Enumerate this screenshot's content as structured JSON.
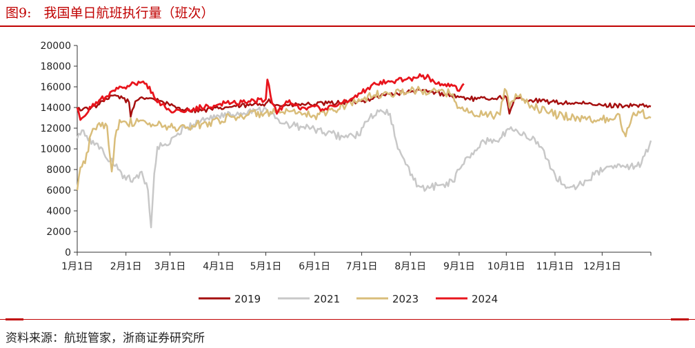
{
  "figure": {
    "label": "图9:",
    "title": "我国单日航班执行量（班次）"
  },
  "source": "资料来源：航班管家，浙商证券研究所",
  "colors": {
    "accent": "#c00000",
    "s2019": "#a50f0f",
    "s2021": "#c8c8c8",
    "s2023": "#d9bd7a",
    "s2024": "#e8141c",
    "axis": "#333333"
  },
  "chart_data": {
    "type": "line",
    "title": "我国单日航班执行量（班次）",
    "xlabel": "",
    "ylabel": "",
    "ylim": [
      0,
      20000
    ],
    "yticks": [
      0,
      2000,
      4000,
      6000,
      8000,
      10000,
      12000,
      14000,
      16000,
      18000,
      20000
    ],
    "xticks": [
      "1月1日",
      "2月1日",
      "3月1日",
      "4月1日",
      "5月1日",
      "6月1日",
      "7月1日",
      "8月1日",
      "9月1日",
      "10月1日",
      "11月1日",
      "12月1日"
    ],
    "xtick_days": [
      1,
      32,
      60,
      91,
      121,
      152,
      182,
      213,
      244,
      274,
      305,
      335
    ],
    "x_range_days": [
      1,
      366
    ],
    "grid": false,
    "legend_position": "bottom",
    "series": [
      {
        "name": "2019",
        "color": "#a50f0f",
        "x": [
          1,
          5,
          10,
          15,
          20,
          25,
          30,
          34,
          35,
          38,
          42,
          48,
          55,
          60,
          65,
          70,
          80,
          91,
          100,
          110,
          121,
          123,
          127,
          135,
          145,
          152,
          160,
          170,
          182,
          190,
          200,
          213,
          220,
          226,
          235,
          244,
          255,
          265,
          274,
          276,
          280,
          290,
          305,
          320,
          335,
          350,
          366
        ],
        "y": [
          13800,
          13900,
          14000,
          14300,
          14800,
          15200,
          14900,
          14500,
          13100,
          14600,
          15000,
          14900,
          14600,
          14200,
          14000,
          13800,
          13700,
          13900,
          14100,
          14200,
          14400,
          14800,
          14200,
          14200,
          14300,
          14300,
          14400,
          14500,
          14600,
          15000,
          15300,
          15500,
          15600,
          15500,
          15300,
          15000,
          14800,
          14900,
          15000,
          13400,
          14900,
          14700,
          14500,
          14400,
          14200,
          14200,
          14100
        ]
      },
      {
        "name": "2021",
        "color": "#c8c8c8",
        "x": [
          1,
          4,
          8,
          14,
          20,
          26,
          32,
          38,
          42,
          46,
          48,
          50,
          52,
          55,
          60,
          65,
          70,
          80,
          91,
          100,
          110,
          121,
          130,
          140,
          152,
          160,
          170,
          180,
          187,
          193,
          200,
          205,
          210,
          215,
          220,
          225,
          232,
          240,
          244,
          250,
          260,
          270,
          277,
          282,
          292,
          300,
          305,
          312,
          320,
          330,
          340,
          350,
          360,
          366
        ],
        "y": [
          11000,
          11800,
          10800,
          10500,
          9000,
          8500,
          7000,
          7200,
          7800,
          6000,
          2400,
          7600,
          10200,
          10300,
          10500,
          11500,
          12000,
          12800,
          13200,
          13300,
          13700,
          13900,
          12500,
          12200,
          11900,
          11500,
          11200,
          11300,
          13000,
          13600,
          13400,
          10000,
          8500,
          7000,
          6300,
          6200,
          6500,
          6800,
          8000,
          9200,
          10700,
          11000,
          12100,
          11500,
          11000,
          9000,
          7500,
          6200,
          6500,
          7500,
          8300,
          8200,
          8600,
          10800
        ]
      },
      {
        "name": "2023",
        "color": "#d9bd7a",
        "x": [
          1,
          3,
          6,
          10,
          15,
          20,
          23,
          25,
          28,
          32,
          38,
          45,
          52,
          60,
          70,
          80,
          91,
          100,
          110,
          121,
          130,
          140,
          152,
          160,
          170,
          182,
          190,
          200,
          213,
          220,
          230,
          240,
          244,
          250,
          260,
          270,
          273,
          276,
          280,
          290,
          300,
          310,
          320,
          335,
          345,
          350,
          355,
          360,
          366
        ],
        "y": [
          6000,
          8200,
          8600,
          11500,
          12500,
          12200,
          7800,
          11000,
          12800,
          12600,
          12500,
          12500,
          12300,
          12100,
          12000,
          12400,
          12800,
          13100,
          13300,
          13500,
          13500,
          13400,
          13200,
          13500,
          14200,
          14800,
          15200,
          15400,
          15600,
          15600,
          15500,
          15300,
          14000,
          13500,
          13300,
          13300,
          15800,
          14000,
          15300,
          14200,
          13500,
          13200,
          13000,
          12800,
          13400,
          11200,
          13500,
          13600,
          13000
        ]
      },
      {
        "name": "2024",
        "color": "#e8141c",
        "x": [
          1,
          3,
          6,
          10,
          15,
          20,
          25,
          30,
          35,
          40,
          45,
          50,
          55,
          60,
          70,
          80,
          91,
          100,
          110,
          121,
          122,
          125,
          128,
          132,
          135,
          140,
          145,
          152,
          160,
          170,
          182,
          190,
          200,
          205,
          210,
          213,
          220,
          225,
          228,
          230,
          240,
          244,
          247
        ],
        "y": [
          14000,
          12800,
          13200,
          14000,
          14700,
          15100,
          15600,
          15900,
          16200,
          16500,
          16300,
          15000,
          14300,
          13700,
          13600,
          14000,
          14300,
          14500,
          14600,
          14800,
          16700,
          14400,
          13400,
          14200,
          14500,
          14200,
          14000,
          14100,
          13800,
          14500,
          15400,
          16400,
          16500,
          16700,
          16700,
          16800,
          17000,
          16900,
          16500,
          16300,
          16100,
          15600,
          16300
        ]
      }
    ]
  }
}
